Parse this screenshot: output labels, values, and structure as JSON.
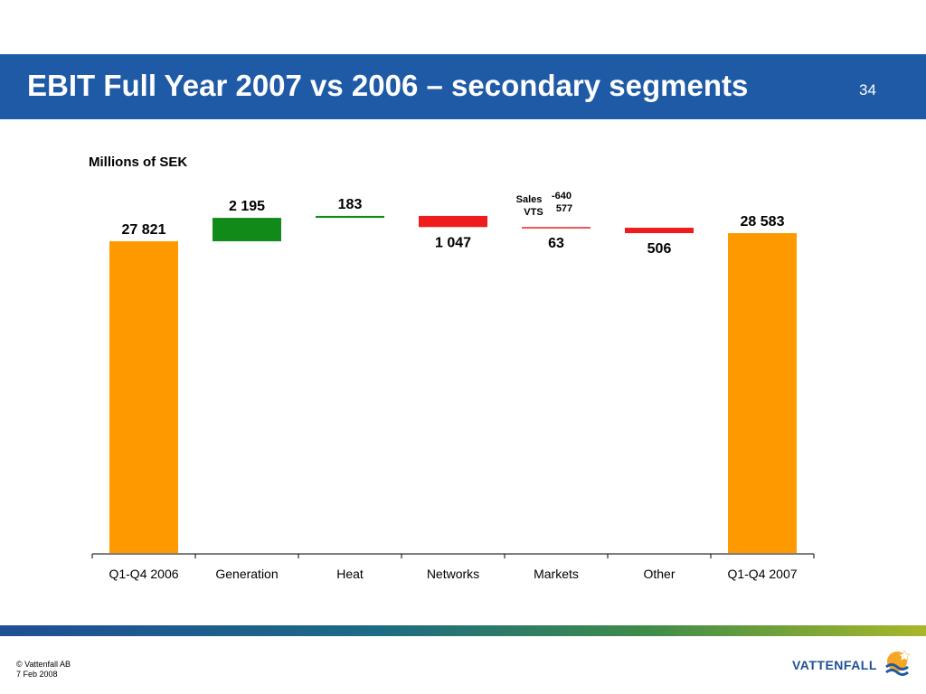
{
  "header": {
    "title": "EBIT Full Year 2007 vs 2006 – secondary segments",
    "page_number": "34"
  },
  "chart_data": {
    "type": "bar",
    "subtype": "waterfall",
    "unit_label": "Millions of SEK",
    "categories": [
      "Q1-Q4 2006",
      "Generation",
      "Heat",
      "Networks",
      "Markets",
      "Other",
      "Q1-Q4 2007"
    ],
    "values": [
      27821,
      2195,
      183,
      -1047,
      -63,
      -506,
      28583
    ],
    "value_labels": [
      "27 821",
      "2 195",
      "183",
      "1 047",
      "63",
      "506",
      "28 583"
    ],
    "markets_breakdown": [
      {
        "name": "Sales",
        "value": "-640"
      },
      {
        "name": "VTS",
        "value": "577"
      }
    ],
    "colors": {
      "total": "#ff9900",
      "increase": "#128a1a",
      "decrease": "#ee1c1c"
    },
    "ylim": [
      0,
      31500
    ],
    "xlabel": "",
    "ylabel": "",
    "grid": false
  },
  "footer": {
    "copyright": "© Vattenfall AB",
    "date": "7 Feb 2008",
    "logo_text": "VATTENFALL",
    "logo_icon": "sun-wave-logo-icon"
  }
}
